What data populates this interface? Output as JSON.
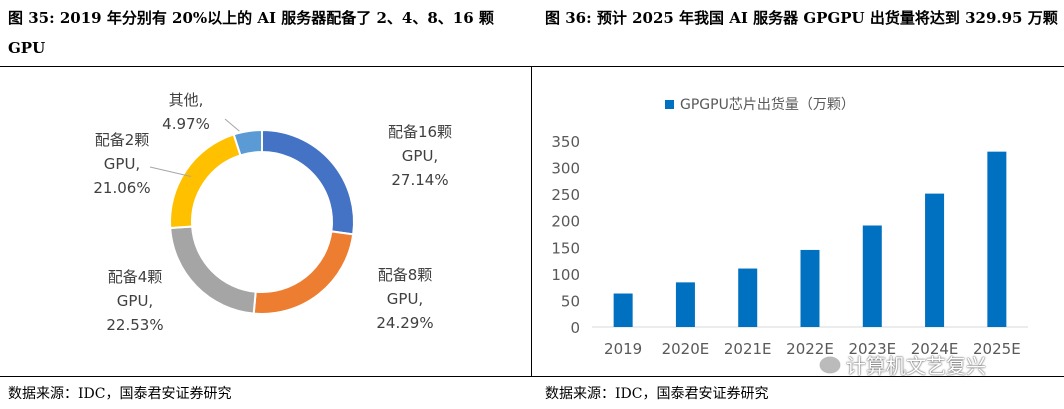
{
  "captions": {
    "left": "图 35: 2019 年分别有 20%以上的 AI 服务器配备了 2、4、8、16 颗 GPU",
    "right": "图 36: 预计 2025 年我国 AI 服务器 GPGPU 出货量将达到 329.95 万颗"
  },
  "sources": {
    "left": "数据来源：IDC，国泰君安证券研究",
    "right": "数据来源：IDC，国泰君安证券研究"
  },
  "watermark": "计算机文艺复兴",
  "chart_data": [
    {
      "type": "pie",
      "donut": true,
      "slices": [
        {
          "label_lines": [
            "配备16颗",
            "GPU,",
            "27.14%"
          ],
          "value": 27.14,
          "color": "#4472C4"
        },
        {
          "label_lines": [
            "配备8颗",
            "GPU,",
            "24.29%"
          ],
          "value": 24.29,
          "color": "#ED7D31"
        },
        {
          "label_lines": [
            "配备4颗",
            "GPU,",
            "22.53%"
          ],
          "value": 22.53,
          "color": "#A5A5A5"
        },
        {
          "label_lines": [
            "配备2颗",
            "GPU,",
            "21.06%"
          ],
          "value": 21.06,
          "color": "#FFC000"
        },
        {
          "label_lines": [
            "其他,",
            "4.97%"
          ],
          "value": 4.97,
          "color": "#5B9BD5"
        }
      ]
    },
    {
      "type": "bar",
      "categories": [
        "2019",
        "2020E",
        "2021E",
        "2022E",
        "2023E",
        "2024E",
        "2025E"
      ],
      "series": [
        {
          "name": "GPGPU芯片出货量（万颗）",
          "values": [
            63,
            84,
            110,
            145,
            191,
            251,
            329.95
          ],
          "color": "#0070C0"
        }
      ],
      "ylim": [
        0,
        350
      ],
      "yticks": [
        0,
        50,
        100,
        150,
        200,
        250,
        300,
        350
      ],
      "legend": "top",
      "grid": false
    }
  ]
}
